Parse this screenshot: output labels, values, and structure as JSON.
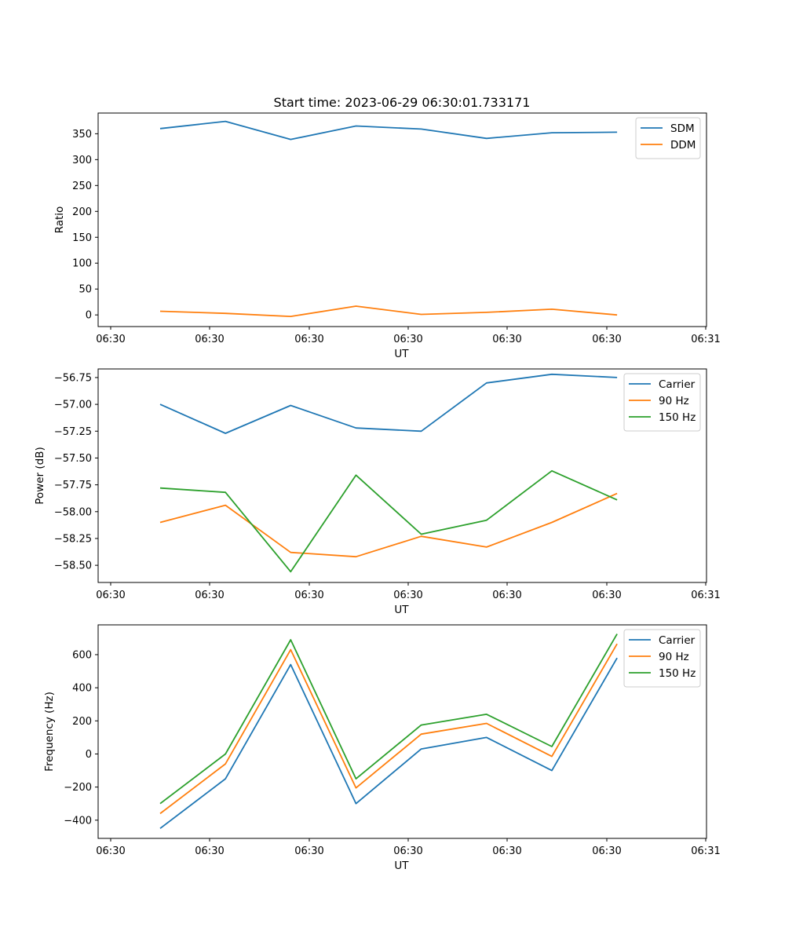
{
  "figure": {
    "title": "Start time: 2023-06-29 06:30:01.733171"
  },
  "chart_data": [
    {
      "type": "line",
      "title": "Start time: 2023-06-29 06:30:01.733171",
      "xlabel": "UT",
      "ylabel": "Ratio",
      "x_tick_labels": [
        "06:30",
        "06:30",
        "06:30",
        "06:30",
        "06:30",
        "06:30",
        "06:31"
      ],
      "y_ticks": [
        0,
        50,
        100,
        150,
        200,
        250,
        300,
        350
      ],
      "ylim": [
        -22.5,
        390
      ],
      "x_range_note": "x axis spans ticks 0..6; data points at x positions 0.5..5.1",
      "x": [
        0.5,
        1.16,
        1.82,
        2.48,
        3.14,
        3.8,
        4.46,
        5.12
      ],
      "legend_position": "upper right",
      "series": [
        {
          "name": "SDM",
          "color": "#1f77b4",
          "values": [
            360,
            374,
            339,
            365,
            359,
            341,
            352,
            353
          ]
        },
        {
          "name": "DDM",
          "color": "#ff7f0e",
          "values": [
            7,
            3,
            -3,
            17,
            1,
            5,
            11,
            0
          ]
        }
      ]
    },
    {
      "type": "line",
      "title": "",
      "xlabel": "UT",
      "ylabel": "Power (dB)",
      "x_tick_labels": [
        "06:30",
        "06:30",
        "06:30",
        "06:30",
        "06:30",
        "06:30",
        "06:31"
      ],
      "y_ticks": [
        -58.5,
        -58.25,
        -58.0,
        -57.75,
        -57.5,
        -57.25,
        -57.0,
        -56.75
      ],
      "y_tick_labels": [
        "−58.50",
        "−58.25",
        "−58.00",
        "−57.75",
        "−57.50",
        "−57.25",
        "−57.00",
        "−56.75"
      ],
      "ylim": [
        -58.66,
        -56.67
      ],
      "x": [
        0.5,
        1.16,
        1.82,
        2.48,
        3.14,
        3.8,
        4.46,
        5.12
      ],
      "legend_position": "upper right",
      "series": [
        {
          "name": "Carrier",
          "color": "#1f77b4",
          "values": [
            -57.0,
            -57.27,
            -57.01,
            -57.22,
            -57.25,
            -56.8,
            -56.72,
            -56.75
          ]
        },
        {
          "name": "90 Hz",
          "color": "#ff7f0e",
          "values": [
            -58.1,
            -57.94,
            -58.38,
            -58.42,
            -58.23,
            -58.33,
            -58.1,
            -57.83
          ]
        },
        {
          "name": "150 Hz",
          "color": "#2ca02c",
          "values": [
            -57.78,
            -57.82,
            -58.56,
            -57.66,
            -58.21,
            -58.08,
            -57.62,
            -57.89
          ]
        }
      ]
    },
    {
      "type": "line",
      "title": "",
      "xlabel": "UT",
      "ylabel": "Frequency (Hz)",
      "x_tick_labels": [
        "06:30",
        "06:30",
        "06:30",
        "06:30",
        "06:30",
        "06:30",
        "06:31"
      ],
      "y_ticks": [
        -400,
        -200,
        0,
        200,
        400,
        600
      ],
      "y_tick_labels": [
        "−400",
        "−200",
        "0",
        "200",
        "400",
        "600"
      ],
      "ylim": [
        -510,
        780
      ],
      "x": [
        0.5,
        1.16,
        1.82,
        2.48,
        3.14,
        3.8,
        4.46,
        5.12
      ],
      "legend_position": "upper right",
      "series": [
        {
          "name": "Carrier",
          "color": "#1f77b4",
          "values": [
            -450,
            -150,
            540,
            -300,
            30,
            100,
            -100,
            580
          ]
        },
        {
          "name": "90 Hz",
          "color": "#ff7f0e",
          "values": [
            -360,
            -60,
            630,
            -205,
            120,
            185,
            -15,
            665
          ]
        },
        {
          "name": "150 Hz",
          "color": "#2ca02c",
          "values": [
            -300,
            0,
            690,
            -150,
            175,
            240,
            45,
            725
          ]
        }
      ]
    }
  ]
}
